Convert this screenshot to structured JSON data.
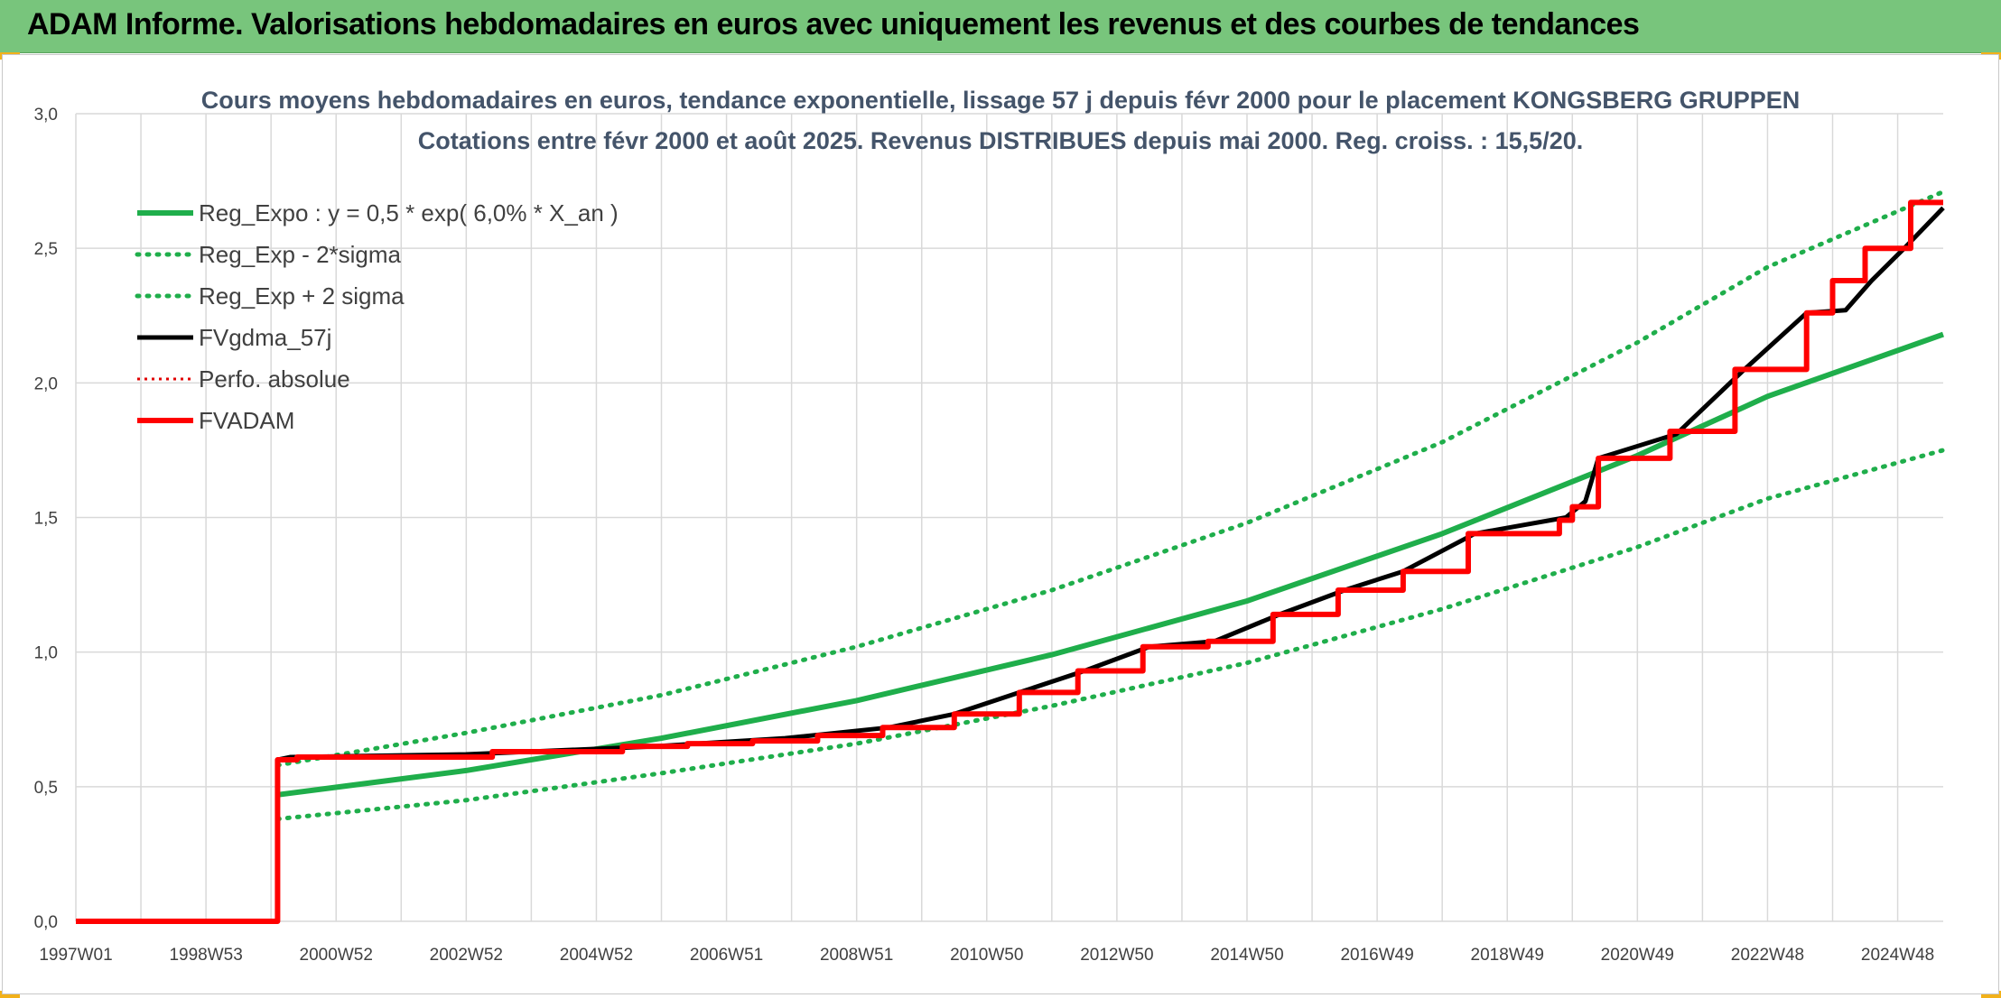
{
  "banner": {
    "title": "ADAM Informe. Valorisations hebdomadaires en euros avec uniquement les revenus et des courbes de tendances"
  },
  "colors": {
    "banner_bg": "#78c57c",
    "regression": "#1fae4b",
    "fvgdma": "#000000",
    "perfo": "#e00000",
    "fvadam": "#ff0000",
    "grid": "#d9d9d9"
  },
  "chart_data": {
    "type": "line",
    "title": "Cours moyens hebdomadaires en euros, tendance exponentielle, lissage 57 j depuis févr 2000 pour le placement KONGSBERG GRUPPEN",
    "subtitle": "Cotations entre févr 2000 et août 2025. Revenus DISTRIBUES depuis mai 2000. Reg. croiss. : 15,5/20.",
    "xlabel": "",
    "ylabel": "",
    "x_tick_labels": [
      "1997W01",
      "1998W53",
      "2000W52",
      "2002W52",
      "2004W52",
      "2006W51",
      "2008W51",
      "2010W50",
      "2012W50",
      "2014W50",
      "2016W49",
      "2018W49",
      "2020W49",
      "2022W48",
      "2024W48"
    ],
    "x_range_years": [
      1997.0,
      2025.7
    ],
    "ylim": [
      0,
      3.0
    ],
    "y_ticks": [
      0,
      0.5,
      1.0,
      1.5,
      2.0,
      2.5,
      3.0
    ],
    "y_tick_labels": [
      "0,0",
      "0,5",
      "1,0",
      "1,5",
      "2,0",
      "2,5",
      "3,0"
    ],
    "grid": true,
    "legend_position": "top-left",
    "legend": [
      {
        "label": "Reg_Expo : y = 0,5 * exp( 6,0% *  X_an )",
        "style": "solid-green"
      },
      {
        "label": "Reg_Exp - 2*sigma",
        "style": "dotted-green"
      },
      {
        "label": "Reg_Exp + 2 sigma",
        "style": "dotted-green"
      },
      {
        "label": "FVgdma_57j",
        "style": "solid-black"
      },
      {
        "label": "Perfo. absolue",
        "style": "dotted-red"
      },
      {
        "label": "FVADAM",
        "style": "solid-red"
      }
    ],
    "series": [
      {
        "name": "Reg_Expo : y = 0,5 * exp( 6,0% *  X_an )",
        "x": [
          2000.1,
          2003.0,
          2006.0,
          2009.0,
          2012.0,
          2015.0,
          2018.0,
          2021.0,
          2023.0,
          2025.7
        ],
        "y": [
          0.47,
          0.56,
          0.68,
          0.82,
          0.99,
          1.19,
          1.44,
          1.73,
          1.95,
          2.18
        ]
      },
      {
        "name": "Reg_Exp - 2*sigma",
        "x": [
          2000.1,
          2003.0,
          2006.0,
          2009.0,
          2012.0,
          2015.0,
          2018.0,
          2021.0,
          2023.0,
          2025.7
        ],
        "y": [
          0.38,
          0.45,
          0.55,
          0.66,
          0.8,
          0.96,
          1.16,
          1.39,
          1.57,
          1.75
        ]
      },
      {
        "name": "Reg_Exp + 2 sigma",
        "x": [
          2000.1,
          2003.0,
          2006.0,
          2009.0,
          2012.0,
          2015.0,
          2018.0,
          2021.0,
          2023.0,
          2025.7
        ],
        "y": [
          0.58,
          0.7,
          0.84,
          1.02,
          1.23,
          1.48,
          1.78,
          2.15,
          2.43,
          2.71
        ]
      },
      {
        "name": "FVgdma_57j",
        "x": [
          1997.0,
          2000.1,
          2000.1,
          2000.3,
          2003.0,
          2005.9,
          2007.9,
          2009.5,
          2010.5,
          2011.5,
          2012.5,
          2013.5,
          2014.5,
          2015.5,
          2016.5,
          2017.4,
          2018.5,
          2019.9,
          2020.2,
          2020.4,
          2021.6,
          2022.6,
          2023.6,
          2024.2,
          2024.6,
          2025.1,
          2025.7
        ],
        "y": [
          0,
          0,
          0.6,
          0.61,
          0.62,
          0.65,
          0.68,
          0.72,
          0.77,
          0.85,
          0.93,
          1.02,
          1.04,
          1.14,
          1.23,
          1.3,
          1.44,
          1.5,
          1.56,
          1.72,
          1.81,
          2.04,
          2.26,
          2.27,
          2.38,
          2.5,
          2.65
        ]
      },
      {
        "name": "FVADAM",
        "x": [
          1997.0,
          2000.1,
          2000.1,
          2000.4,
          2000.4,
          2003.4,
          2003.4,
          2005.4,
          2005.4,
          2006.4,
          2006.4,
          2007.4,
          2007.4,
          2008.4,
          2008.4,
          2009.4,
          2009.4,
          2010.5,
          2010.5,
          2011.5,
          2011.5,
          2012.4,
          2012.4,
          2013.4,
          2013.4,
          2014.4,
          2014.4,
          2015.4,
          2015.4,
          2016.4,
          2016.4,
          2017.4,
          2017.4,
          2018.4,
          2018.4,
          2019.8,
          2019.8,
          2020.0,
          2020.0,
          2020.4,
          2020.4,
          2021.5,
          2021.5,
          2022.5,
          2022.5,
          2023.6,
          2023.6,
          2024.0,
          2024.0,
          2024.5,
          2024.5,
          2025.2,
          2025.2,
          2025.7
        ],
        "y": [
          0,
          0,
          0.6,
          0.6,
          0.61,
          0.61,
          0.63,
          0.63,
          0.65,
          0.65,
          0.66,
          0.66,
          0.67,
          0.67,
          0.69,
          0.69,
          0.72,
          0.72,
          0.77,
          0.77,
          0.85,
          0.85,
          0.93,
          0.93,
          1.02,
          1.02,
          1.04,
          1.04,
          1.14,
          1.14,
          1.23,
          1.23,
          1.3,
          1.3,
          1.44,
          1.44,
          1.49,
          1.49,
          1.54,
          1.54,
          1.72,
          1.72,
          1.82,
          1.82,
          2.05,
          2.05,
          2.26,
          2.26,
          2.38,
          2.38,
          2.5,
          2.5,
          2.67,
          2.67
        ]
      }
    ]
  }
}
